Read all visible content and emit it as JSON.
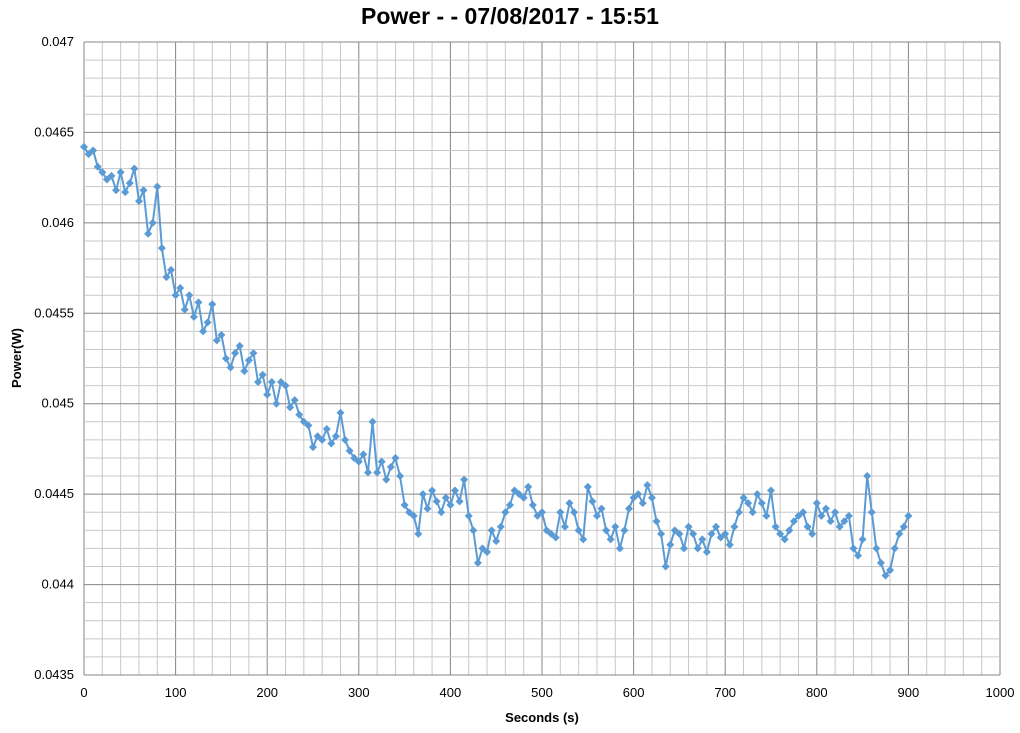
{
  "chart_data": {
    "type": "line",
    "title": "Power -  - 07/08/2017 - 15:51",
    "xlabel": "Seconds (s)",
    "ylabel": "Power(W)",
    "xlim": [
      0,
      1000
    ],
    "ylim": [
      0.0435,
      0.047
    ],
    "xticks": [
      "0",
      "100",
      "200",
      "300",
      "400",
      "500",
      "600",
      "700",
      "800",
      "900",
      "1000"
    ],
    "yticks": [
      "0.0435",
      "0.044",
      "0.0445",
      "0.045",
      "0.0455",
      "0.046",
      "0.0465",
      "0.047"
    ],
    "grid": "major and minor",
    "marker": "diamond",
    "color": "#5B9BD5",
    "series": [
      {
        "x": [
          0,
          5,
          10,
          15,
          20,
          25,
          30,
          35,
          40,
          45,
          50,
          55,
          60,
          65,
          70,
          75,
          80,
          85,
          90,
          95,
          100,
          105,
          110,
          115,
          120,
          125,
          130,
          135,
          140,
          145,
          150,
          155,
          160,
          165,
          170,
          175,
          180,
          185,
          190,
          195,
          200,
          205,
          210,
          215,
          220,
          225,
          230,
          235,
          240,
          245,
          250,
          255,
          260,
          265,
          270,
          275,
          280,
          285,
          290,
          295,
          300,
          305,
          310,
          315,
          320,
          325,
          330,
          335,
          340,
          345,
          350,
          355,
          360,
          365,
          370,
          375,
          380,
          385,
          390,
          395,
          400,
          405,
          410,
          415,
          420,
          425,
          430,
          435,
          440,
          445,
          450,
          455,
          460,
          465,
          470,
          475,
          480,
          485,
          490,
          495,
          500,
          505,
          510,
          515,
          520,
          525,
          530,
          535,
          540,
          545,
          550,
          555,
          560,
          565,
          570,
          575,
          580,
          585,
          590,
          595,
          600,
          605,
          610,
          615,
          620,
          625,
          630,
          635,
          640,
          645,
          650,
          655,
          660,
          665,
          670,
          675,
          680,
          685,
          690,
          695,
          700,
          705,
          710,
          715,
          720,
          725,
          730,
          735,
          740,
          745,
          750,
          755,
          760,
          765,
          770,
          775,
          780,
          785,
          790,
          795,
          800,
          805,
          810,
          815,
          820,
          825,
          830,
          835,
          840,
          845,
          850,
          855,
          860,
          865,
          870,
          875,
          880,
          885,
          890,
          895,
          900
        ],
        "y": [
          0.04642,
          0.04638,
          0.0464,
          0.04631,
          0.04628,
          0.04624,
          0.04626,
          0.04618,
          0.04628,
          0.04617,
          0.04622,
          0.0463,
          0.04612,
          0.04618,
          0.04594,
          0.046,
          0.0462,
          0.04586,
          0.0457,
          0.04574,
          0.0456,
          0.04564,
          0.04552,
          0.0456,
          0.04548,
          0.04556,
          0.0454,
          0.04545,
          0.04555,
          0.04535,
          0.04538,
          0.04525,
          0.0452,
          0.04528,
          0.04532,
          0.04518,
          0.04524,
          0.04528,
          0.04512,
          0.04516,
          0.04505,
          0.04512,
          0.045,
          0.04512,
          0.0451,
          0.04498,
          0.04502,
          0.04494,
          0.0449,
          0.04488,
          0.04476,
          0.04482,
          0.0448,
          0.04486,
          0.04478,
          0.04482,
          0.04495,
          0.0448,
          0.04474,
          0.0447,
          0.04468,
          0.04472,
          0.04462,
          0.0449,
          0.04462,
          0.04468,
          0.04458,
          0.04465,
          0.0447,
          0.0446,
          0.04444,
          0.0444,
          0.04438,
          0.04428,
          0.0445,
          0.04442,
          0.04452,
          0.04446,
          0.0444,
          0.04448,
          0.04444,
          0.04452,
          0.04446,
          0.04458,
          0.04438,
          0.0443,
          0.04412,
          0.0442,
          0.04418,
          0.0443,
          0.04424,
          0.04432,
          0.0444,
          0.04444,
          0.04452,
          0.0445,
          0.04448,
          0.04454,
          0.04444,
          0.04438,
          0.0444,
          0.0443,
          0.04428,
          0.04426,
          0.0444,
          0.04432,
          0.04445,
          0.0444,
          0.0443,
          0.04425,
          0.04454,
          0.04446,
          0.04438,
          0.04442,
          0.0443,
          0.04425,
          0.04432,
          0.0442,
          0.0443,
          0.04442,
          0.04448,
          0.0445,
          0.04445,
          0.04455,
          0.04448,
          0.04435,
          0.04428,
          0.0441,
          0.04422,
          0.0443,
          0.04428,
          0.0442,
          0.04432,
          0.04428,
          0.0442,
          0.04425,
          0.04418,
          0.04428,
          0.04432,
          0.04426,
          0.04428,
          0.04422,
          0.04432,
          0.0444,
          0.04448,
          0.04445,
          0.0444,
          0.0445,
          0.04445,
          0.04438,
          0.04452,
          0.04432,
          0.04428,
          0.04425,
          0.0443,
          0.04435,
          0.04438,
          0.0444,
          0.04432,
          0.04428,
          0.04445,
          0.04438,
          0.04442,
          0.04435,
          0.0444,
          0.04432,
          0.04435,
          0.04438,
          0.0442,
          0.04416,
          0.04425,
          0.0446,
          0.0444,
          0.0442,
          0.04412,
          0.04405,
          0.04408,
          0.0442,
          0.04428,
          0.04432,
          0.04438
        ]
      }
    ]
  }
}
